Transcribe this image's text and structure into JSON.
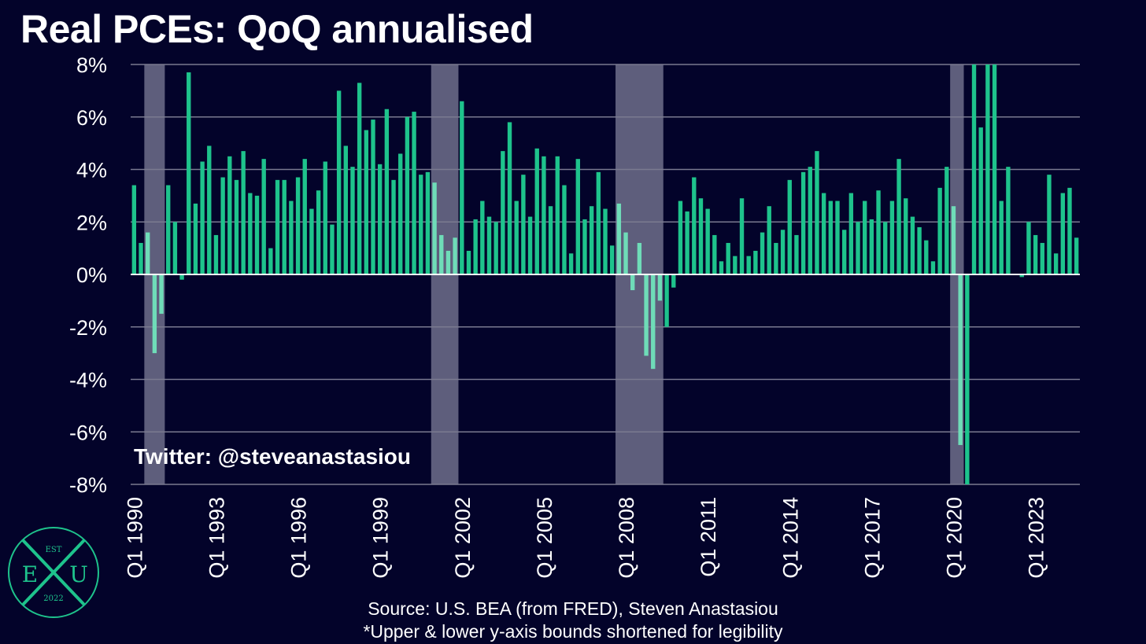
{
  "chart_data": {
    "type": "bar",
    "title": "Real PCEs: QoQ annualised",
    "x_start": "Q1 1990",
    "frequency": "quarterly",
    "tick_labels": [
      "Q1 1990",
      "Q1 1993",
      "Q1 1996",
      "Q1 1999",
      "Q1 2002",
      "Q1 2005",
      "Q1 2008",
      "Q1 2011",
      "Q1 2014",
      "Q1 2017",
      "Q1 2020",
      "Q1 2023"
    ],
    "y_ticks": [
      "8%",
      "6%",
      "4%",
      "2%",
      "0%",
      "-2%",
      "-4%",
      "-6%",
      "-8%"
    ],
    "ylim": [
      -8,
      8
    ],
    "grid": true,
    "recessions": [
      {
        "start": "Q3 1990",
        "end": "Q1 1991"
      },
      {
        "start": "Q1 2001",
        "end": "Q4 2001"
      },
      {
        "start": "Q4 2007",
        "end": "Q2 2009"
      },
      {
        "start": "Q1 2020",
        "end": "Q2 2020"
      }
    ],
    "colors": {
      "bar": "#1ec38c",
      "bar_recession": "#6fdcb8",
      "recession_band": "#5e5e7c",
      "grid": "#7a7a90",
      "zero_line": "#ffffff",
      "background": "#03032a"
    },
    "values": [
      3.4,
      1.2,
      1.6,
      -3.0,
      -1.5,
      3.4,
      2.0,
      -0.2,
      7.7,
      2.7,
      4.3,
      4.9,
      1.5,
      3.7,
      4.5,
      3.6,
      4.7,
      3.1,
      3.0,
      4.4,
      1.0,
      3.6,
      3.6,
      2.8,
      3.7,
      4.4,
      2.5,
      3.2,
      4.3,
      1.9,
      7.0,
      4.9,
      4.1,
      7.3,
      5.5,
      5.9,
      4.2,
      6.3,
      3.6,
      4.6,
      6.0,
      6.2,
      3.8,
      3.9,
      3.5,
      1.5,
      0.9,
      1.4,
      6.6,
      0.9,
      2.1,
      2.8,
      2.2,
      2.0,
      4.7,
      5.8,
      2.8,
      3.8,
      2.2,
      4.8,
      4.5,
      2.6,
      4.5,
      3.4,
      0.8,
      4.4,
      2.1,
      2.6,
      3.9,
      2.5,
      1.1,
      2.7,
      1.6,
      -0.6,
      1.2,
      -3.1,
      -3.6,
      -1.0,
      -2.0,
      -0.5,
      2.8,
      2.4,
      3.7,
      2.9,
      2.5,
      1.5,
      0.5,
      1.2,
      0.7,
      2.9,
      0.7,
      0.9,
      1.6,
      2.6,
      1.2,
      1.7,
      3.6,
      1.5,
      3.9,
      4.1,
      4.7,
      3.1,
      2.8,
      2.8,
      1.7,
      3.1,
      2.0,
      2.8,
      2.1,
      3.2,
      2.0,
      2.8,
      4.4,
      2.9,
      2.2,
      1.8,
      1.3,
      0.5,
      3.3,
      4.1,
      2.6,
      -6.5,
      -8.0,
      8.0,
      5.6,
      8.0,
      8.0,
      2.8,
      4.1,
      0.0,
      -0.1,
      2.0,
      1.5,
      1.2,
      3.8,
      0.8,
      3.1,
      3.3,
      1.4
    ]
  },
  "annotation": "Twitter: @steveanastasiou",
  "source_line1": "Source: U.S. BEA (from FRED), Steven Anastasiou",
  "source_line2": "*Upper & lower y-axis bounds shortened for legibility",
  "logo": {
    "top": "EST",
    "left": "E",
    "right": "U",
    "bottom": "2022",
    "color": "#1ec38c"
  }
}
